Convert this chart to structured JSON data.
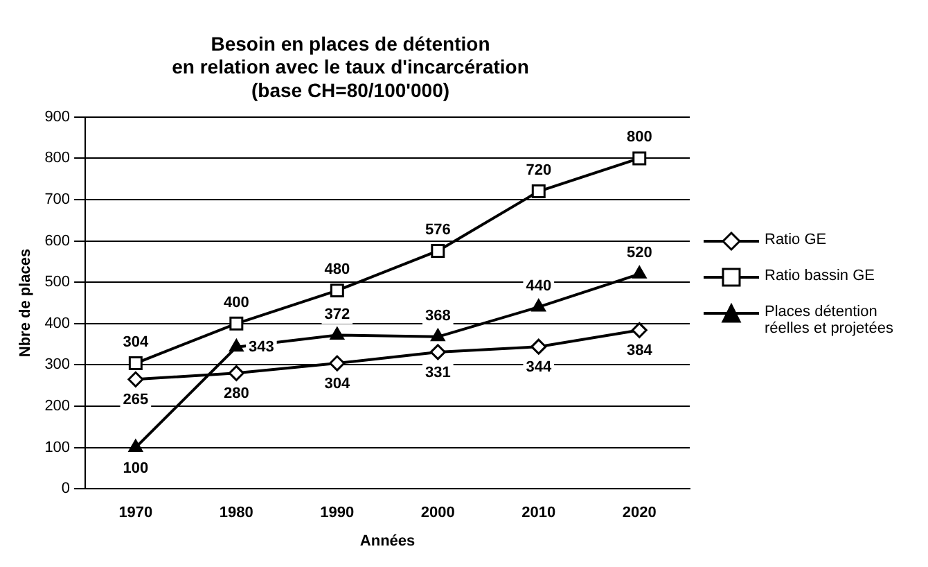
{
  "chart_data": {
    "type": "line",
    "title": "Besoin en places de détention\nen relation avec le taux d'incarcération\n(base CH=80/100'000)",
    "xlabel": "Années",
    "ylabel": "Nbre de places",
    "categories": [
      "1970",
      "1980",
      "1990",
      "2000",
      "2010",
      "2020"
    ],
    "series": [
      {
        "name": "Ratio GE",
        "color": "#000000",
        "marker": "diamond",
        "values": [
          265,
          280,
          304,
          331,
          344,
          384
        ]
      },
      {
        "name": "Ratio bassin GE",
        "color": "#000000",
        "marker": "square",
        "values": [
          304,
          400,
          480,
          576,
          720,
          800
        ]
      },
      {
        "name": "Places détention réelles et projetées",
        "color": "#000000",
        "marker": "triangle",
        "values": [
          100,
          343,
          372,
          368,
          440,
          520
        ]
      }
    ],
    "ylim": [
      0,
      900
    ],
    "yticks": [
      0,
      100,
      200,
      300,
      400,
      500,
      600,
      700,
      800,
      900
    ],
    "grid": "y",
    "legend": "right",
    "data_labels": true,
    "line_style": "solid"
  }
}
